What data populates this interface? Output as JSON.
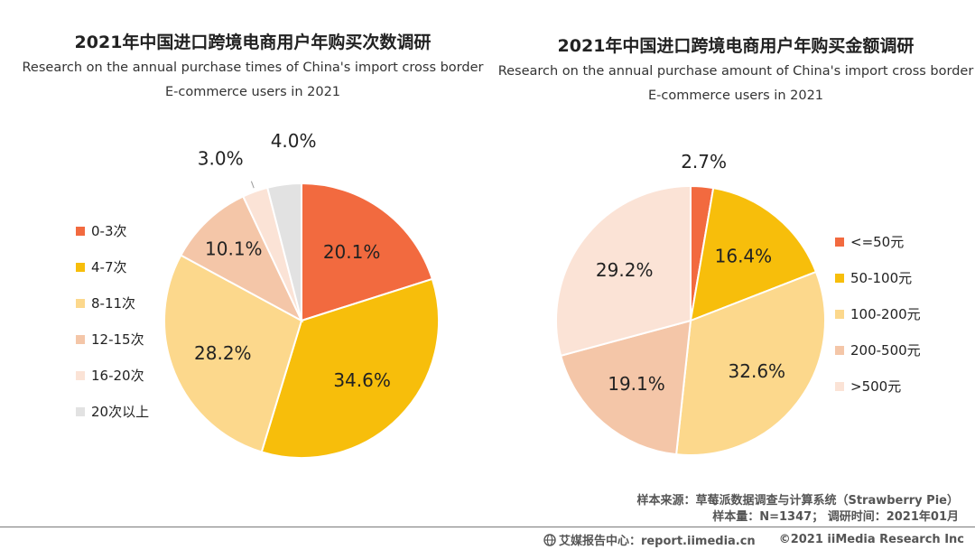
{
  "colors": {
    "c1": "#f26a3f",
    "c2": "#f7be0b",
    "c3": "#fcd88c",
    "c4": "#f4c6a8",
    "c5": "#fbe3d6",
    "c6": "#e2e2e2"
  },
  "chart_data": [
    {
      "type": "pie",
      "title": "2021年中国进口跨境电商用户年购买次数调研",
      "subtitle_line1": "Research on the annual purchase times of China's import cross border",
      "subtitle_line2": "E-commerce users in 2021",
      "legend_position": "left",
      "slices": [
        {
          "label": "0-3次",
          "value": 20.1,
          "display": "20.1%"
        },
        {
          "label": "4-7次",
          "value": 34.6,
          "display": "34.6%"
        },
        {
          "label": "8-11次",
          "value": 28.2,
          "display": "28.2%"
        },
        {
          "label": "12-15次",
          "value": 10.1,
          "display": "10.1%"
        },
        {
          "label": "16-20次",
          "value": 3.0,
          "display": "3.0%"
        },
        {
          "label": "20次以上",
          "value": 4.0,
          "display": "4.0%"
        }
      ]
    },
    {
      "type": "pie",
      "title": "2021年中国进口跨境电商用户年购买金额调研",
      "subtitle_line1": "Research on the annual purchase amount of China's import cross border",
      "subtitle_line2": "E-commerce users in 2021",
      "legend_position": "right",
      "slices": [
        {
          "label": "<=50元",
          "value": 2.7,
          "display": "2.7%"
        },
        {
          "label": "50-100元",
          "value": 16.4,
          "display": "16.4%"
        },
        {
          "label": "100-200元",
          "value": 32.6,
          "display": "32.6%"
        },
        {
          "label": "200-500元",
          "value": 19.1,
          "display": "19.1%"
        },
        {
          "label": ">500元",
          "value": 29.2,
          "display": "29.2%"
        }
      ]
    }
  ],
  "source": {
    "line1": "样本来源：草莓派数据调查与计算系统（Strawberry Pie）",
    "line2": "样本量：N=1347；  调研时间：2021年01月"
  },
  "footer": {
    "site": "艾媒报告中心：report.iimedia.cn",
    "copyright": "©2021  iiMedia Research  Inc"
  }
}
